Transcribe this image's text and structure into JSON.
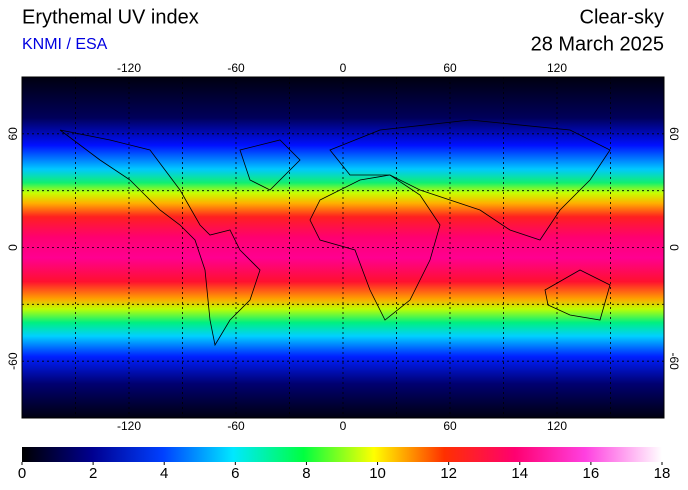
{
  "header": {
    "title": "Erythemal UV index",
    "source": "KNMI / ESA",
    "sky": "Clear-sky",
    "date": "28 March 2025"
  },
  "map": {
    "lon_range": [
      -180,
      180
    ],
    "lat_range": [
      -90,
      90
    ],
    "lon_ticks": [
      -120,
      -60,
      0,
      60,
      120
    ],
    "lat_ticks": [
      60,
      0,
      -60
    ]
  },
  "colorbar": {
    "range": [
      0,
      18
    ],
    "ticks": [
      0,
      2,
      4,
      6,
      8,
      10,
      12,
      14,
      16,
      18
    ]
  }
}
